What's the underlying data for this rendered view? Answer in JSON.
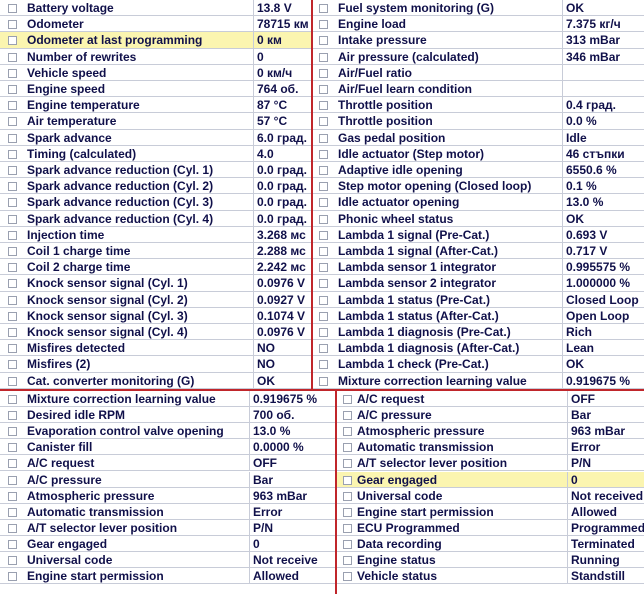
{
  "panels": [
    {
      "rows": [
        [
          "Battery voltage",
          "13.8 V"
        ],
        [
          "Odometer",
          "78715 км"
        ],
        [
          "Odometer at last programming",
          "0 км"
        ],
        [
          "Number of rewrites",
          "0"
        ],
        [
          "Vehicle speed",
          "0 км/ч"
        ],
        [
          "Engine speed",
          "764 об."
        ],
        [
          "Engine temperature",
          "87 °C"
        ],
        [
          "Air temperature",
          "57 °C"
        ],
        [
          "Spark advance",
          "6.0 град."
        ],
        [
          "Timing (calculated)",
          "4.0"
        ],
        [
          "Spark advance reduction (Cyl. 1)",
          "0.0 град."
        ],
        [
          "Spark advance reduction (Cyl. 2)",
          "0.0 град."
        ],
        [
          "Spark advance reduction (Cyl. 3)",
          "0.0 град."
        ],
        [
          "Spark advance reduction (Cyl. 4)",
          "0.0 град."
        ],
        [
          "Injection time",
          "3.268 мс"
        ],
        [
          "Coil 1 charge time",
          "2.288 мс"
        ],
        [
          "Coil 2 charge time",
          "2.242 мс"
        ],
        [
          "Knock sensor signal (Cyl. 1)",
          "0.0976 V"
        ],
        [
          "Knock sensor signal (Cyl. 2)",
          "0.0927 V"
        ],
        [
          "Knock sensor signal (Cyl. 3)",
          "0.1074 V"
        ],
        [
          "Knock sensor signal (Cyl. 4)",
          "0.0976 V"
        ],
        [
          "Misfires detected",
          "NO"
        ],
        [
          "Misfires (2)",
          "NO"
        ],
        [
          "Cat. converter monitoring (G)",
          "OK"
        ]
      ]
    },
    {
      "rows": [
        [
          "Fuel system monitoring (G)",
          "OK"
        ],
        [
          "Engine load",
          "7.375 кг/ч"
        ],
        [
          "Intake pressure",
          "313 mBar"
        ],
        [
          "Air pressure (calculated)",
          "346 mBar"
        ],
        [
          "Air/Fuel ratio"
        ],
        [
          "Air/Fuel learn condition"
        ],
        [
          "Throttle position",
          "0.4 град."
        ],
        [
          "Throttle position",
          "0.0 %"
        ],
        [
          "Gas pedal position",
          "Idle"
        ],
        [
          "Idle actuator (Step motor)",
          "46 стъпки"
        ],
        [
          "Adaptive idle opening",
          "6550.6 %"
        ],
        [
          "Step motor opening (Closed loop)",
          "0.1 %"
        ],
        [
          "Idle actuator opening",
          "13.0 %"
        ],
        [
          "Phonic wheel status",
          "OK"
        ],
        [
          "Lambda 1 signal (Pre-Cat.)",
          "0.693 V"
        ],
        [
          "Lambda 1 signal (After-Cat.)",
          "0.717 V"
        ],
        [
          "Lambda sensor 1 integrator",
          "0.995575 %"
        ],
        [
          "Lambda sensor 2 integrator",
          "1.000000 %"
        ],
        [
          "Lambda 1 status (Pre-Cat.)",
          "Closed Loop"
        ],
        [
          "Lambda 1 status (After-Cat.)",
          "Open Loop"
        ],
        [
          "Lambda 1 diagnosis (Pre-Cat.)",
          "Rich"
        ],
        [
          "Lambda 1 diagnosis (After-Cat.)",
          "Lean"
        ],
        [
          "Lambda 1 check (Pre-Cat.)",
          "OK"
        ],
        [
          "Mixture correction learning value",
          "0.919675 %"
        ]
      ]
    },
    {
      "rows": [
        [
          "Mixture correction learning value",
          "0.919675 %"
        ],
        [
          "Desired idle RPM",
          "700 об."
        ],
        [
          "Evaporation control valve opening",
          "13.0 %"
        ],
        [
          "Canister fill",
          "0.0000 %"
        ],
        [
          "A/C request",
          "OFF"
        ],
        [
          "A/C pressure",
          "Bar"
        ],
        [
          "Atmospheric pressure",
          "963 mBar"
        ],
        [
          "Automatic transmission",
          "Error"
        ],
        [
          "A/T selector lever position",
          "P/N"
        ],
        [
          "Gear engaged",
          "0"
        ],
        [
          "Universal code",
          "Not receive"
        ],
        [
          "Engine start permission",
          "Allowed"
        ]
      ]
    },
    {
      "rows": [
        [
          "A/C request",
          "OFF"
        ],
        [
          "A/C pressure",
          "Bar"
        ],
        [
          "Atmospheric pressure",
          "963 mBar"
        ],
        [
          "Automatic transmission",
          "Error"
        ],
        [
          "A/T selector lever position",
          "P/N"
        ],
        [
          "Gear engaged",
          "0"
        ],
        [
          "Universal code",
          "Not received"
        ],
        [
          "Engine start permission",
          "Allowed"
        ],
        [
          "ECU Programmed",
          "Programmed"
        ],
        [
          "Data recording",
          "Terminated"
        ],
        [
          "Engine status",
          "Running"
        ],
        [
          "Vehicle status",
          "Standstill"
        ]
      ]
    }
  ]
}
